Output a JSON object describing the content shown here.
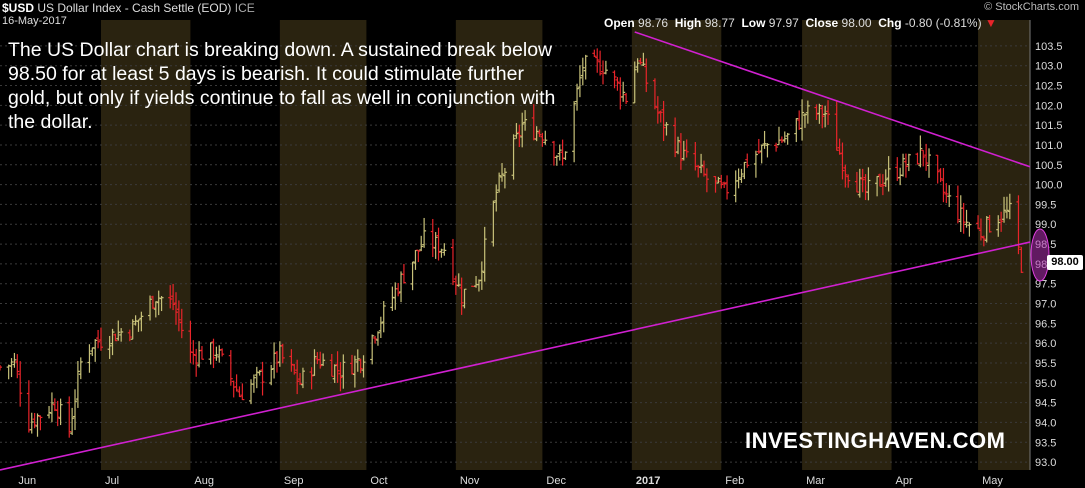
{
  "header": {
    "symbol": "$USD",
    "name": "US Dollar Index - Cash Settle (EOD)",
    "exchange": "ICE",
    "date": "16-May-2017",
    "brand": "© StockCharts.com",
    "open_label": "Open",
    "open": "98.76",
    "high_label": "High",
    "high": "98.77",
    "low_label": "Low",
    "low": "97.97",
    "close_label": "Close",
    "close": "98.00",
    "chg_label": "Chg",
    "chg": "-0.80 (-0.81%)"
  },
  "annotation": "The US Dollar chart is breaking down. A sustained break below 98.50 for at least 5 days is bearish. It could stimulate further gold, but only if yields continue to fall as well in conjunction with the dollar.",
  "watermark": "INVESTINGHAVEN.COM",
  "price_tag": "98.00",
  "colors": {
    "up": "#c8c27a",
    "down": "#e8242a",
    "trend": "#d020d0",
    "band": "#2a2310",
    "grid": "#3a3a3a",
    "highlight": "#b030b0"
  },
  "chart_data": {
    "type": "candlestick",
    "title": "US Dollar Index - Cash Settle (EOD)",
    "ylim": [
      92.8,
      103.85
    ],
    "y_ticks": [
      93.0,
      93.5,
      94.0,
      94.5,
      95.0,
      95.5,
      96.0,
      96.5,
      97.0,
      97.5,
      98.0,
      98.5,
      99.0,
      99.5,
      100.0,
      100.5,
      101.0,
      101.5,
      102.0,
      102.5,
      103.0,
      103.5
    ],
    "x_range": [
      "2016-05-27",
      "2017-05-19"
    ],
    "months": [
      {
        "label": "Jun",
        "start": "2016-06-01"
      },
      {
        "label": "Jul",
        "start": "2016-07-01"
      },
      {
        "label": "Aug",
        "start": "2016-08-01"
      },
      {
        "label": "Sep",
        "start": "2016-09-01"
      },
      {
        "label": "Oct",
        "start": "2016-10-01"
      },
      {
        "label": "Nov",
        "start": "2016-11-01"
      },
      {
        "label": "Dec",
        "start": "2016-12-01"
      },
      {
        "label": "2017",
        "start": "2017-01-01"
      },
      {
        "label": "Feb",
        "start": "2017-02-01"
      },
      {
        "label": "Mar",
        "start": "2017-03-01"
      },
      {
        "label": "Apr",
        "start": "2017-04-01"
      },
      {
        "label": "May",
        "start": "2017-05-01"
      }
    ],
    "closes": [
      [
        "2016-05-27",
        95.4
      ],
      [
        "2016-06-01",
        95.5
      ],
      [
        "2016-06-06",
        94.0
      ],
      [
        "2016-06-10",
        94.2
      ],
      [
        "2016-06-15",
        94.5
      ],
      [
        "2016-06-20",
        93.8
      ],
      [
        "2016-06-24",
        95.5
      ],
      [
        "2016-06-28",
        96.0
      ],
      [
        "2016-07-05",
        96.2
      ],
      [
        "2016-07-12",
        96.4
      ],
      [
        "2016-07-20",
        97.2
      ],
      [
        "2016-07-26",
        97.0
      ],
      [
        "2016-08-01",
        95.7
      ],
      [
        "2016-08-10",
        95.8
      ],
      [
        "2016-08-18",
        94.7
      ],
      [
        "2016-08-26",
        95.2
      ],
      [
        "2016-09-01",
        95.7
      ],
      [
        "2016-09-08",
        95.0
      ],
      [
        "2016-09-14",
        95.6
      ],
      [
        "2016-09-22",
        95.3
      ],
      [
        "2016-09-29",
        95.6
      ],
      [
        "2016-10-06",
        96.6
      ],
      [
        "2016-10-13",
        97.6
      ],
      [
        "2016-10-21",
        98.6
      ],
      [
        "2016-10-28",
        98.4
      ],
      [
        "2016-11-03",
        97.2
      ],
      [
        "2016-11-09",
        97.7
      ],
      [
        "2016-11-15",
        99.8
      ],
      [
        "2016-11-24",
        101.5
      ],
      [
        "2016-12-01",
        101.3
      ],
      [
        "2016-12-08",
        100.6
      ],
      [
        "2016-12-15",
        103.0
      ],
      [
        "2016-12-22",
        103.0
      ],
      [
        "2016-12-30",
        102.2
      ],
      [
        "2017-01-03",
        103.2
      ],
      [
        "2017-01-10",
        101.8
      ],
      [
        "2017-01-18",
        100.8
      ],
      [
        "2017-01-26",
        100.2
      ],
      [
        "2017-02-02",
        99.8
      ],
      [
        "2017-02-10",
        100.6
      ],
      [
        "2017-02-17",
        101.0
      ],
      [
        "2017-02-24",
        101.2
      ],
      [
        "2017-03-02",
        101.8
      ],
      [
        "2017-03-09",
        101.8
      ],
      [
        "2017-03-16",
        100.4
      ],
      [
        "2017-03-23",
        99.8
      ],
      [
        "2017-03-30",
        100.2
      ],
      [
        "2017-04-06",
        100.5
      ],
      [
        "2017-04-12",
        100.8
      ],
      [
        "2017-04-19",
        99.8
      ],
      [
        "2017-04-26",
        99.1
      ],
      [
        "2017-05-02",
        98.8
      ],
      [
        "2017-05-08",
        99.2
      ],
      [
        "2017-05-12",
        99.3
      ],
      [
        "2017-05-16",
        98.0
      ]
    ],
    "trendlines": [
      {
        "from": [
          "2016-05-27",
          92.8
        ],
        "to": [
          "2017-05-19",
          98.55
        ]
      },
      {
        "from": [
          "2017-01-02",
          103.85
        ],
        "to": [
          "2017-05-19",
          100.45
        ]
      }
    ],
    "grid": true
  }
}
